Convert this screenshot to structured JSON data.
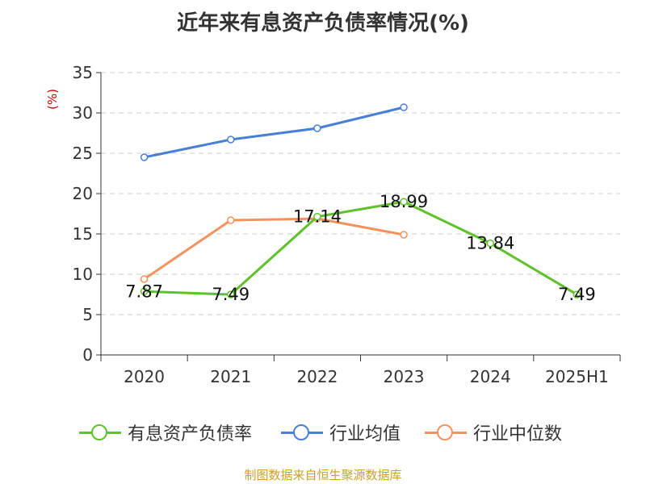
{
  "title": "近年来有息资产负债率情况(%)",
  "unit_label": "(%)",
  "source": "制图数据来自恒生聚源数据库",
  "chart_data": {
    "type": "line",
    "title": "近年来有息资产负债率情况(%)",
    "ylabel": "(%)",
    "xlabel": "",
    "categories": [
      "2020",
      "2021",
      "2022",
      "2023",
      "2024",
      "2025H1"
    ],
    "ylim": [
      0,
      35
    ],
    "yticks": [
      0,
      5,
      10,
      15,
      20,
      25,
      30,
      35
    ],
    "grid": true,
    "legend_position": "bottom",
    "series": [
      {
        "name": "有息资产负债率",
        "color": "#5fc22a",
        "values": [
          7.87,
          7.49,
          17.14,
          18.99,
          13.84,
          7.49
        ],
        "labels": [
          "7.87",
          "7.49",
          "17.14",
          "18.99",
          "13.84",
          "7.49"
        ]
      },
      {
        "name": "行业均值",
        "color": "#4a7fd6",
        "values": [
          24.5,
          26.7,
          28.1,
          30.7,
          null,
          null
        ]
      },
      {
        "name": "行业中位数",
        "color": "#f4925e",
        "values": [
          9.4,
          16.7,
          16.9,
          14.9,
          null,
          null
        ]
      }
    ]
  }
}
